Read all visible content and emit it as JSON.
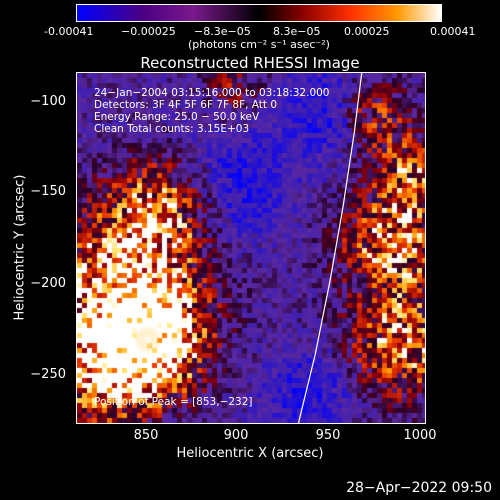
{
  "colorbar": {
    "ticks": [
      "-0.00041",
      "−0.00025",
      "−8.3e−05",
      "8.3e−05",
      "0.00025",
      "0.00041"
    ],
    "unit_label": "(photons cm⁻² s⁻¹ asec⁻²)",
    "colors": [
      "#0000ff",
      "#4b0082",
      "#7a1a8c",
      "#000000",
      "#8b0000",
      "#ff3000",
      "#ff9a00",
      "#ffffff"
    ]
  },
  "plot": {
    "title": "Reconstructed RHESSI Image",
    "xlabel": "Heliocentric X (arcsec)",
    "ylabel": "Heliocentric Y (arcsec)",
    "x_ticks": [
      "850",
      "900",
      "950",
      "1000"
    ],
    "y_ticks": [
      "−100",
      "−150",
      "−200",
      "−250"
    ],
    "annotations": {
      "time": "24−Jan−2004 03:15:16.000 to 03:18:32.000",
      "detectors": "Detectors: 3F 4F 5F 6F 7F 8F, Att 0",
      "energy": "Energy Range: 25.0 − 50.0 keV",
      "clean": "Clean    Total counts: 3.15E+03",
      "peak": "Position of Peak = [853,−232]"
    }
  },
  "footer": {
    "date": "28−Apr−2022 09:50"
  },
  "chart_data": {
    "type": "heatmap",
    "title": "Reconstructed RHESSI Image",
    "xlabel": "Heliocentric X (arcsec)",
    "ylabel": "Heliocentric Y (arcsec)",
    "xlim": [
      815,
      1002
    ],
    "ylim": [
      -277,
      -88
    ],
    "zlim": [
      -0.00041,
      0.00041
    ],
    "peak": [
      853,
      -232
    ],
    "limb_curve": {
      "x": [
        934,
        943,
        951,
        958,
        964,
        968
      ],
      "y": [
        -277,
        -240,
        -200,
        -160,
        -120,
        -88
      ]
    }
  }
}
